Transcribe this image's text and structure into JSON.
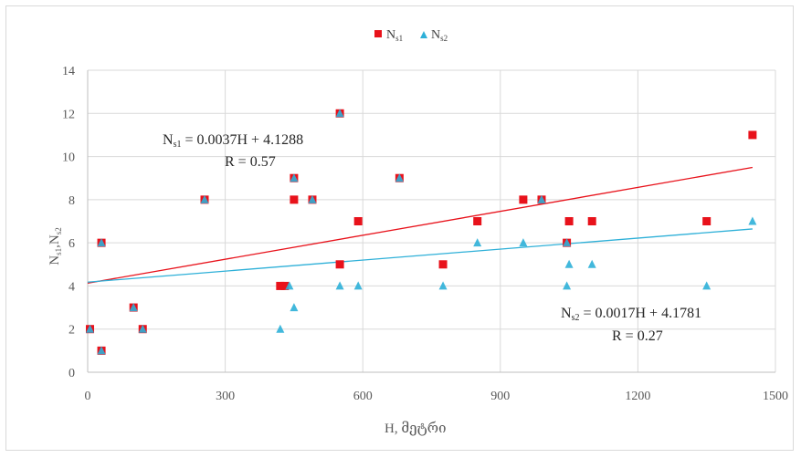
{
  "chart_data": {
    "type": "scatter",
    "title": "",
    "xlabel": "H, მეტრი",
    "ylabel": "Ns1,Ns2",
    "xlim": [
      0,
      1500
    ],
    "ylim": [
      0,
      14
    ],
    "xticks": [
      0,
      300,
      600,
      900,
      1200,
      1500
    ],
    "yticks": [
      0,
      2,
      4,
      6,
      8,
      10,
      12,
      14
    ],
    "x_gridlines": true,
    "y_gridlines": true,
    "legend_position": "top-center",
    "series": [
      {
        "name": "Ns1",
        "name_main": "N",
        "name_sub": "s1",
        "marker": "square",
        "color": "#e8121b",
        "points": [
          [
            5,
            2
          ],
          [
            30,
            1
          ],
          [
            30,
            6
          ],
          [
            100,
            3
          ],
          [
            120,
            2
          ],
          [
            255,
            8
          ],
          [
            420,
            4
          ],
          [
            430,
            4
          ],
          [
            450,
            9
          ],
          [
            450,
            8
          ],
          [
            490,
            8
          ],
          [
            550,
            12
          ],
          [
            550,
            5
          ],
          [
            590,
            7
          ],
          [
            680,
            9
          ],
          [
            775,
            5
          ],
          [
            850,
            7
          ],
          [
            950,
            8
          ],
          [
            990,
            8
          ],
          [
            1045,
            6
          ],
          [
            1050,
            7
          ],
          [
            1100,
            7
          ],
          [
            1350,
            7
          ],
          [
            1450,
            11
          ]
        ]
      },
      {
        "name": "Ns2",
        "name_main": "N",
        "name_sub": "s2",
        "marker": "triangle",
        "color": "#2eb0d8",
        "points": [
          [
            5,
            2
          ],
          [
            30,
            1
          ],
          [
            30,
            6
          ],
          [
            100,
            3
          ],
          [
            120,
            2
          ],
          [
            255,
            8
          ],
          [
            420,
            2
          ],
          [
            440,
            4
          ],
          [
            450,
            3
          ],
          [
            450,
            9
          ],
          [
            490,
            8
          ],
          [
            550,
            12
          ],
          [
            550,
            4
          ],
          [
            590,
            4
          ],
          [
            680,
            9
          ],
          [
            775,
            4
          ],
          [
            850,
            6
          ],
          [
            950,
            6
          ],
          [
            990,
            8
          ],
          [
            1045,
            6
          ],
          [
            1045,
            4
          ],
          [
            1050,
            5
          ],
          [
            1100,
            5
          ],
          [
            1350,
            4
          ],
          [
            1450,
            7
          ]
        ]
      }
    ],
    "trendlines": [
      {
        "series": "Ns1",
        "color": "#e8121b",
        "slope": 0.0037,
        "intercept": 4.1288,
        "x_range": [
          0,
          1450
        ]
      },
      {
        "series": "Ns2",
        "color": "#2eb0d8",
        "slope": 0.0017,
        "intercept": 4.1781,
        "x_range": [
          0,
          1450
        ]
      }
    ],
    "annotations": [
      {
        "sub": "s1",
        "equation": " = 0.0037H + 4.1288",
        "r_text": "R = 0.57"
      },
      {
        "sub": "s2",
        "equation": " = 0.0017H + 4.1781",
        "r_text": "R = 0.27"
      }
    ],
    "gridline_color": "#d9d9d9",
    "axis_color": "#bfbfbf"
  }
}
